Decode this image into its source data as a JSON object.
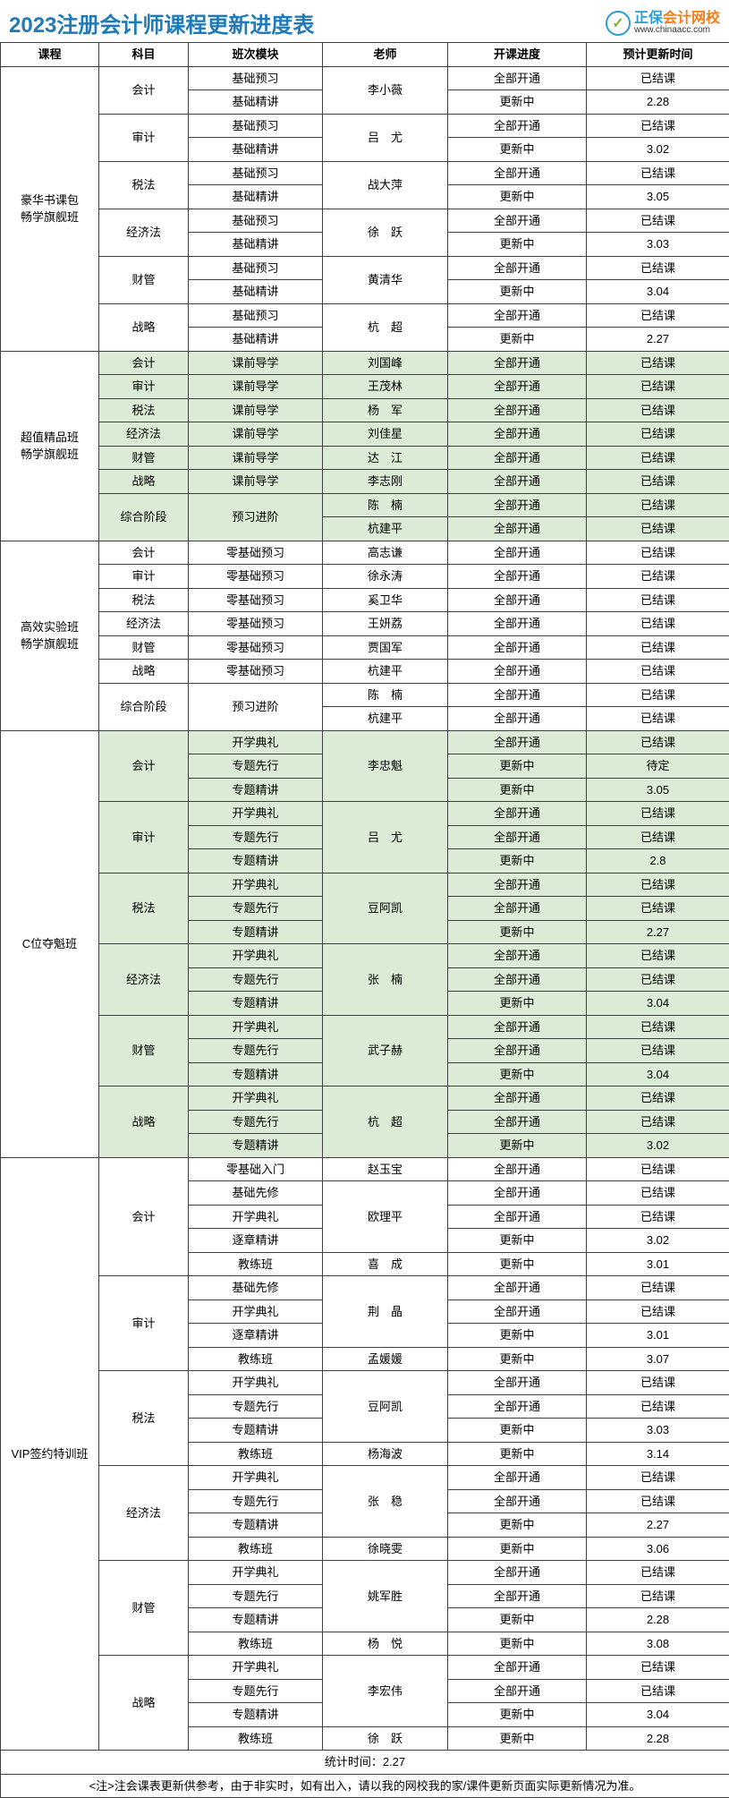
{
  "title": "2023注册会计师课程更新进度表",
  "logo": {
    "brand_a": "正保",
    "brand_b": "会计网校",
    "url": "www.chinaacc.com",
    "checkmark": "✓"
  },
  "headers": {
    "course": "课程",
    "subject": "科目",
    "module": "班次模块",
    "teacher": "老师",
    "progress": "开课进度",
    "update": "预计更新时间"
  },
  "colors": {
    "title": "#1e7bb8",
    "border": "#404040",
    "alt_row_bg": "#dcebd5",
    "bg": "#ffffff"
  },
  "footer_time": "统计时间：2.27",
  "note": "<注>注会课表更新供参考，由于非实时，如有出入，请以我的网校我的家/课件更新页面实际更新情况为准。",
  "courses": [
    {
      "name": "豪华书课包\n畅学旗舰班",
      "alt": false,
      "subjects": [
        {
          "name": "会计",
          "teacher": "李小薇",
          "rows": [
            {
              "module": "基础预习",
              "progress": "全部开通",
              "update": "已结课"
            },
            {
              "module": "基础精讲",
              "progress": "更新中",
              "update": "2.28"
            }
          ]
        },
        {
          "name": "审计",
          "teacher": "吕　尤",
          "rows": [
            {
              "module": "基础预习",
              "progress": "全部开通",
              "update": "已结课"
            },
            {
              "module": "基础精讲",
              "progress": "更新中",
              "update": "3.02"
            }
          ]
        },
        {
          "name": "税法",
          "teacher": "战大萍",
          "rows": [
            {
              "module": "基础预习",
              "progress": "全部开通",
              "update": "已结课"
            },
            {
              "module": "基础精讲",
              "progress": "更新中",
              "update": "3.05"
            }
          ]
        },
        {
          "name": "经济法",
          "teacher": "徐　跃",
          "rows": [
            {
              "module": "基础预习",
              "progress": "全部开通",
              "update": "已结课"
            },
            {
              "module": "基础精讲",
              "progress": "更新中",
              "update": "3.03"
            }
          ]
        },
        {
          "name": "财管",
          "teacher": "黄清华",
          "rows": [
            {
              "module": "基础预习",
              "progress": "全部开通",
              "update": "已结课"
            },
            {
              "module": "基础精讲",
              "progress": "更新中",
              "update": "3.04"
            }
          ]
        },
        {
          "name": "战略",
          "teacher": "杭　超",
          "rows": [
            {
              "module": "基础预习",
              "progress": "全部开通",
              "update": "已结课"
            },
            {
              "module": "基础精讲",
              "progress": "更新中",
              "update": "2.27"
            }
          ]
        }
      ]
    },
    {
      "name": "超值精品班\n畅学旗舰班",
      "alt": true,
      "subjects": [
        {
          "name": "会计",
          "teacher": "刘国峰",
          "rows": [
            {
              "module": "课前导学",
              "progress": "全部开通",
              "update": "已结课"
            }
          ]
        },
        {
          "name": "审计",
          "teacher": "王茂林",
          "rows": [
            {
              "module": "课前导学",
              "progress": "全部开通",
              "update": "已结课"
            }
          ]
        },
        {
          "name": "税法",
          "teacher": "杨　军",
          "rows": [
            {
              "module": "课前导学",
              "progress": "全部开通",
              "update": "已结课"
            }
          ]
        },
        {
          "name": "经济法",
          "teacher": "刘佳星",
          "rows": [
            {
              "module": "课前导学",
              "progress": "全部开通",
              "update": "已结课"
            }
          ]
        },
        {
          "name": "财管",
          "teacher": "达　江",
          "rows": [
            {
              "module": "课前导学",
              "progress": "全部开通",
              "update": "已结课"
            }
          ]
        },
        {
          "name": "战略",
          "teacher": "李志刚",
          "rows": [
            {
              "module": "课前导学",
              "progress": "全部开通",
              "update": "已结课"
            }
          ]
        },
        {
          "name": "综合阶段",
          "module_merged": "预习进阶",
          "teachers": [
            {
              "teacher": "陈　楠",
              "progress": "全部开通",
              "update": "已结课"
            },
            {
              "teacher": "杭建平",
              "progress": "全部开通",
              "update": "已结课"
            }
          ]
        }
      ]
    },
    {
      "name": "高效实验班\n畅学旗舰班",
      "alt": false,
      "subjects": [
        {
          "name": "会计",
          "teacher": "高志谦",
          "rows": [
            {
              "module": "零基础预习",
              "progress": "全部开通",
              "update": "已结课"
            }
          ]
        },
        {
          "name": "审计",
          "teacher": "徐永涛",
          "rows": [
            {
              "module": "零基础预习",
              "progress": "全部开通",
              "update": "已结课"
            }
          ]
        },
        {
          "name": "税法",
          "teacher": "奚卫华",
          "rows": [
            {
              "module": "零基础预习",
              "progress": "全部开通",
              "update": "已结课"
            }
          ]
        },
        {
          "name": "经济法",
          "teacher": "王妍荔",
          "rows": [
            {
              "module": "零基础预习",
              "progress": "全部开通",
              "update": "已结课"
            }
          ]
        },
        {
          "name": "财管",
          "teacher": "贾国军",
          "rows": [
            {
              "module": "零基础预习",
              "progress": "全部开通",
              "update": "已结课"
            }
          ]
        },
        {
          "name": "战略",
          "teacher": "杭建平",
          "rows": [
            {
              "module": "零基础预习",
              "progress": "全部开通",
              "update": "已结课"
            }
          ]
        },
        {
          "name": "综合阶段",
          "module_merged": "预习进阶",
          "teachers": [
            {
              "teacher": "陈　楠",
              "progress": "全部开通",
              "update": "已结课"
            },
            {
              "teacher": "杭建平",
              "progress": "全部开通",
              "update": "已结课"
            }
          ]
        }
      ]
    },
    {
      "name": "C位夺魁班",
      "alt": true,
      "subjects": [
        {
          "name": "会计",
          "teacher": "李忠魁",
          "rows": [
            {
              "module": "开学典礼",
              "progress": "全部开通",
              "update": "已结课"
            },
            {
              "module": "专题先行",
              "progress": "更新中",
              "update": "待定"
            },
            {
              "module": "专题精讲",
              "progress": "更新中",
              "update": "3.05"
            }
          ]
        },
        {
          "name": "审计",
          "teacher": "吕　尤",
          "rows": [
            {
              "module": "开学典礼",
              "progress": "全部开通",
              "update": "已结课"
            },
            {
              "module": "专题先行",
              "progress": "全部开通",
              "update": "已结课"
            },
            {
              "module": "专题精讲",
              "progress": "更新中",
              "update": "2.8"
            }
          ]
        },
        {
          "name": "税法",
          "teacher": "豆阿凯",
          "rows": [
            {
              "module": "开学典礼",
              "progress": "全部开通",
              "update": "已结课"
            },
            {
              "module": "专题先行",
              "progress": "全部开通",
              "update": "已结课"
            },
            {
              "module": "专题精讲",
              "progress": "更新中",
              "update": "2.27"
            }
          ]
        },
        {
          "name": "经济法",
          "teacher": "张　楠",
          "rows": [
            {
              "module": "开学典礼",
              "progress": "全部开通",
              "update": "已结课"
            },
            {
              "module": "专题先行",
              "progress": "全部开通",
              "update": "已结课"
            },
            {
              "module": "专题精讲",
              "progress": "更新中",
              "update": "3.04"
            }
          ]
        },
        {
          "name": "财管",
          "teacher": "武子赫",
          "rows": [
            {
              "module": "开学典礼",
              "progress": "全部开通",
              "update": "已结课"
            },
            {
              "module": "专题先行",
              "progress": "全部开通",
              "update": "已结课"
            },
            {
              "module": "专题精讲",
              "progress": "更新中",
              "update": "3.04"
            }
          ]
        },
        {
          "name": "战略",
          "teacher": "杭　超",
          "rows": [
            {
              "module": "开学典礼",
              "progress": "全部开通",
              "update": "已结课"
            },
            {
              "module": "专题先行",
              "progress": "全部开通",
              "update": "已结课"
            },
            {
              "module": "专题精讲",
              "progress": "更新中",
              "update": "3.02"
            }
          ]
        }
      ]
    },
    {
      "name": "VIP签约特训班",
      "alt": false,
      "subjects": [
        {
          "name": "会计",
          "multi_teacher": true,
          "modules": [
            {
              "module": "零基础入门",
              "teacher": "赵玉宝",
              "progress": "全部开通",
              "update": "已结课"
            },
            {
              "module": "基础先修",
              "teacher": "欧理平",
              "teacher_span": 3,
              "progress": "全部开通",
              "update": "已结课"
            },
            {
              "module": "开学典礼",
              "progress": "全部开通",
              "update": "已结课"
            },
            {
              "module": "逐章精讲",
              "progress": "更新中",
              "update": "3.02"
            },
            {
              "module": "教练班",
              "teacher": "喜　成",
              "progress": "更新中",
              "update": "3.01"
            }
          ]
        },
        {
          "name": "审计",
          "multi_teacher": true,
          "modules": [
            {
              "module": "基础先修",
              "teacher": "荆　晶",
              "teacher_span": 3,
              "progress": "全部开通",
              "update": "已结课"
            },
            {
              "module": "开学典礼",
              "progress": "全部开通",
              "update": "已结课"
            },
            {
              "module": "逐章精讲",
              "progress": "更新中",
              "update": "3.01"
            },
            {
              "module": "教练班",
              "teacher": "孟媛媛",
              "progress": "更新中",
              "update": "3.07"
            }
          ]
        },
        {
          "name": "税法",
          "multi_teacher": true,
          "modules": [
            {
              "module": "开学典礼",
              "teacher": "豆阿凯",
              "teacher_span": 3,
              "progress": "全部开通",
              "update": "已结课"
            },
            {
              "module": "专题先行",
              "progress": "全部开通",
              "update": "已结课"
            },
            {
              "module": "专题精讲",
              "progress": "更新中",
              "update": "3.03"
            },
            {
              "module": "教练班",
              "teacher": "杨海波",
              "progress": "更新中",
              "update": "3.14"
            }
          ]
        },
        {
          "name": "经济法",
          "multi_teacher": true,
          "modules": [
            {
              "module": "开学典礼",
              "teacher": "张　稳",
              "teacher_span": 3,
              "progress": "全部开通",
              "update": "已结课"
            },
            {
              "module": "专题先行",
              "progress": "全部开通",
              "update": "已结课"
            },
            {
              "module": "专题精讲",
              "progress": "更新中",
              "update": "2.27"
            },
            {
              "module": "教练班",
              "teacher": "徐晓雯",
              "progress": "更新中",
              "update": "3.06"
            }
          ]
        },
        {
          "name": "财管",
          "multi_teacher": true,
          "modules": [
            {
              "module": "开学典礼",
              "teacher": "姚军胜",
              "teacher_span": 3,
              "progress": "全部开通",
              "update": "已结课"
            },
            {
              "module": "专题先行",
              "progress": "全部开通",
              "update": "已结课"
            },
            {
              "module": "专题精讲",
              "progress": "更新中",
              "update": "2.28"
            },
            {
              "module": "教练班",
              "teacher": "杨　悦",
              "progress": "更新中",
              "update": "3.08"
            }
          ]
        },
        {
          "name": "战略",
          "multi_teacher": true,
          "modules": [
            {
              "module": "开学典礼",
              "teacher": "李宏伟",
              "teacher_span": 3,
              "progress": "全部开通",
              "update": "已结课"
            },
            {
              "module": "专题先行",
              "progress": "全部开通",
              "update": "已结课"
            },
            {
              "module": "专题精讲",
              "progress": "更新中",
              "update": "3.04"
            },
            {
              "module": "教练班",
              "teacher": "徐　跃",
              "progress": "更新中",
              "update": "2.28"
            }
          ]
        }
      ]
    }
  ]
}
